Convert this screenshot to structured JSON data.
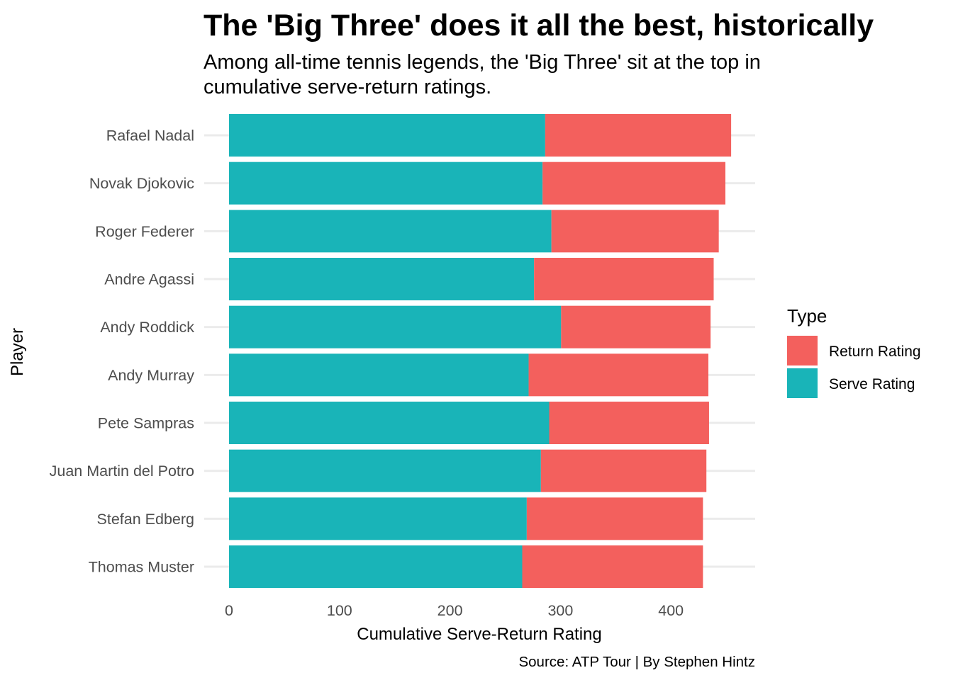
{
  "chart_data": {
    "type": "bar",
    "orientation": "horizontal",
    "stacked": true,
    "title": "The 'Big Three' does it all the best, historically",
    "subtitle": [
      "Among all-time tennis legends, the 'Big Three' sit at the top in",
      "cumulative serve-return ratings."
    ],
    "xlabel": "Cumulative Serve-Return Rating",
    "ylabel": "Player",
    "caption": "Source: ATP Tour | By Stephen Hintz",
    "xlim": [
      0,
      480
    ],
    "x_ticks": [
      "0",
      "100",
      "200",
      "300",
      "400"
    ],
    "x_tick_values": [
      0,
      100,
      200,
      300,
      400
    ],
    "grid": true,
    "legend": {
      "title": "Type",
      "position": "right"
    },
    "categories": [
      "Rafael Nadal",
      "Novak Djokovic",
      "Roger Federer",
      "Andre Agassi",
      "Andy Roddick",
      "Andy Murray",
      "Pete Sampras",
      "Juan Martin del Potro",
      "Stefan Edberg",
      "Thomas Muster"
    ],
    "series": [
      {
        "name": "Serve Rating",
        "color": "#19b4b8",
        "values": [
          286.2,
          283.8,
          291.8,
          276.1,
          300.6,
          271.2,
          289.8,
          282.3,
          269.5,
          265.4
        ]
      },
      {
        "name": "Return Rating",
        "color": "#f3605d",
        "values": [
          168.3,
          165.5,
          151.5,
          162.6,
          135.3,
          162.7,
          144.7,
          149.8,
          159.5,
          163.6
        ]
      }
    ],
    "legend_order": [
      "Return Rating",
      "Serve Rating"
    ]
  }
}
